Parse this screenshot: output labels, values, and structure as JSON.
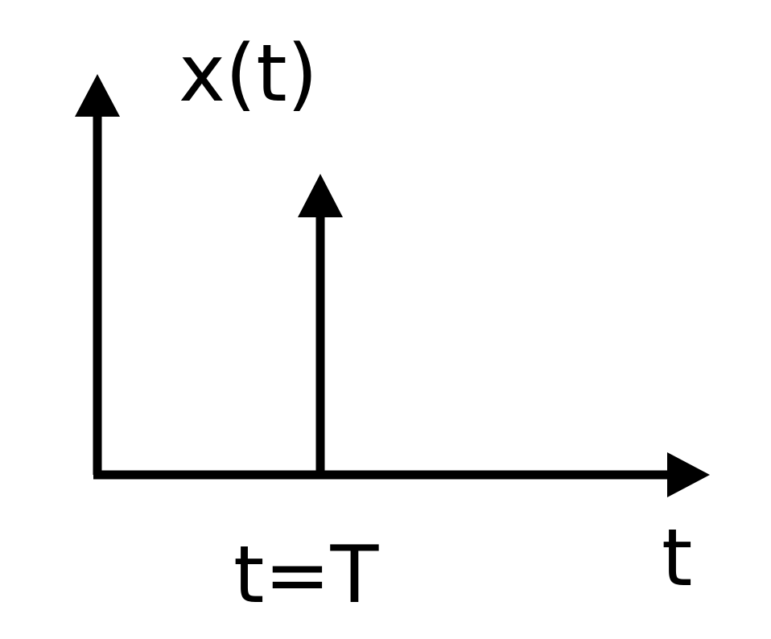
{
  "diagram": {
    "y_axis_label": "x(t)",
    "x_axis_label": "t",
    "impulse_label": "t=T",
    "colors": {
      "stroke": "#000000",
      "background": "#ffffff"
    }
  }
}
